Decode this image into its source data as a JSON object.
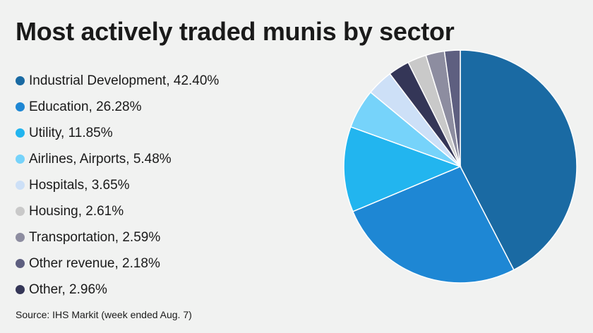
{
  "title": "Most actively traded munis by sector",
  "source": "Source: IHS Markit (week ended Aug. 7)",
  "chart_data": {
    "type": "pie",
    "legend": [
      {
        "label": "Industrial Development, 42.40%",
        "color": "#1a6aa3"
      },
      {
        "label": "Education, 26.28%",
        "color": "#1e87d4"
      },
      {
        "label": "Utility, 11.85%",
        "color": "#22b5ef"
      },
      {
        "label": "Airlines, Airports, 5.48%",
        "color": "#76d3fa"
      },
      {
        "label": "Hospitals, 3.65%",
        "color": "#cde0f7"
      },
      {
        "label": "Housing, 2.61%",
        "color": "#c9c9c9"
      },
      {
        "label": "Transportation, 2.59%",
        "color": "#8d8da0"
      },
      {
        "label": "Other revenue, 2.18%",
        "color": "#5e5f80"
      },
      {
        "label": "Other, 2.96%",
        "color": "#343657"
      }
    ],
    "slices": [
      {
        "name": "Industrial Development",
        "value": 42.4,
        "color": "#1a6aa3"
      },
      {
        "name": "Education",
        "value": 26.28,
        "color": "#1e87d4"
      },
      {
        "name": "Utility",
        "value": 11.85,
        "color": "#22b5ef"
      },
      {
        "name": "Airlines, Airports",
        "value": 5.48,
        "color": "#76d3fa"
      },
      {
        "name": "Hospitals",
        "value": 3.65,
        "color": "#cde0f7"
      },
      {
        "name": "Other",
        "value": 2.96,
        "color": "#343657"
      },
      {
        "name": "Housing",
        "value": 2.61,
        "color": "#c9c9c9"
      },
      {
        "name": "Transportation",
        "value": 2.59,
        "color": "#8d8da0"
      },
      {
        "name": "Other revenue",
        "value": 2.18,
        "color": "#5e5f80"
      }
    ]
  }
}
